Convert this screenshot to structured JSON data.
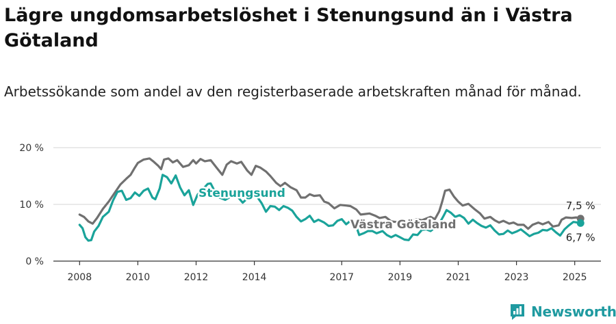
{
  "title": "Lägre ungdomsarbetslöshet i Stenungsund än i Västra Götaland",
  "subtitle": "Arbetssökande som andel av den registerbaserade arbetskraften månad för månad.",
  "brand": {
    "name": "Newsworthy",
    "color": "#1f9aa0",
    "icon": "newsworthy-logo-icon"
  },
  "chart_data": {
    "type": "line",
    "x_unit": "year",
    "xlim": [
      2007.1,
      2025.9
    ],
    "ylim": [
      0,
      20
    ],
    "y_ticks": [
      0,
      10,
      20
    ],
    "y_tick_labels": [
      "0 %",
      "10 %",
      "20 %"
    ],
    "x_ticks": [
      2008,
      2010,
      2012,
      2014,
      2017,
      2019,
      2021,
      2023,
      2025
    ],
    "x_tick_labels": [
      "2008",
      "2010",
      "2012",
      "2014",
      "2017",
      "2019",
      "2021",
      "2023",
      "2025"
    ],
    "grid": true,
    "series": [
      {
        "name": "Västra Götaland",
        "color": "#707070",
        "end_label": "7,5 %",
        "points": [
          [
            2008.0,
            8.2
          ],
          [
            2008.15,
            7.8
          ],
          [
            2008.3,
            7.0
          ],
          [
            2008.45,
            6.6
          ],
          [
            2008.6,
            7.6
          ],
          [
            2008.8,
            9.2
          ],
          [
            2009.0,
            10.5
          ],
          [
            2009.2,
            12.0
          ],
          [
            2009.4,
            13.5
          ],
          [
            2009.6,
            14.5
          ],
          [
            2009.75,
            15.2
          ],
          [
            2009.9,
            16.5
          ],
          [
            2010.0,
            17.3
          ],
          [
            2010.2,
            17.9
          ],
          [
            2010.4,
            18.1
          ],
          [
            2010.55,
            17.5
          ],
          [
            2010.7,
            16.8
          ],
          [
            2010.8,
            16.2
          ],
          [
            2010.9,
            17.9
          ],
          [
            2011.05,
            18.1
          ],
          [
            2011.2,
            17.4
          ],
          [
            2011.35,
            17.8
          ],
          [
            2011.55,
            16.6
          ],
          [
            2011.75,
            16.9
          ],
          [
            2011.9,
            17.8
          ],
          [
            2012.0,
            17.2
          ],
          [
            2012.15,
            18.0
          ],
          [
            2012.3,
            17.6
          ],
          [
            2012.5,
            17.8
          ],
          [
            2012.7,
            16.5
          ],
          [
            2012.9,
            15.2
          ],
          [
            2013.05,
            17.0
          ],
          [
            2013.2,
            17.6
          ],
          [
            2013.4,
            17.2
          ],
          [
            2013.55,
            17.5
          ],
          [
            2013.75,
            16.0
          ],
          [
            2013.9,
            15.2
          ],
          [
            2014.05,
            16.8
          ],
          [
            2014.2,
            16.5
          ],
          [
            2014.4,
            15.8
          ],
          [
            2014.55,
            15.0
          ],
          [
            2014.75,
            13.8
          ],
          [
            2014.9,
            13.2
          ],
          [
            2015.05,
            13.8
          ],
          [
            2015.25,
            13.0
          ],
          [
            2015.45,
            12.5
          ],
          [
            2015.6,
            11.2
          ],
          [
            2015.75,
            11.2
          ],
          [
            2015.9,
            11.8
          ],
          [
            2016.05,
            11.5
          ],
          [
            2016.25,
            11.6
          ],
          [
            2016.4,
            10.5
          ],
          [
            2016.55,
            10.2
          ],
          [
            2016.75,
            9.3
          ],
          [
            2016.95,
            9.9
          ],
          [
            2017.15,
            9.8
          ],
          [
            2017.3,
            9.7
          ],
          [
            2017.5,
            9.1
          ],
          [
            2017.65,
            8.2
          ],
          [
            2017.8,
            8.3
          ],
          [
            2017.95,
            8.4
          ],
          [
            2018.15,
            8.0
          ],
          [
            2018.3,
            7.6
          ],
          [
            2018.5,
            7.8
          ],
          [
            2018.7,
            7.0
          ],
          [
            2018.85,
            6.9
          ],
          [
            2019.0,
            7.0
          ],
          [
            2019.2,
            6.8
          ],
          [
            2019.4,
            6.9
          ],
          [
            2019.55,
            7.4
          ],
          [
            2019.75,
            7.2
          ],
          [
            2019.9,
            7.5
          ],
          [
            2020.05,
            7.8
          ],
          [
            2020.2,
            7.4
          ],
          [
            2020.35,
            8.8
          ],
          [
            2020.45,
            10.5
          ],
          [
            2020.55,
            12.4
          ],
          [
            2020.7,
            12.6
          ],
          [
            2020.85,
            11.4
          ],
          [
            2021.0,
            10.5
          ],
          [
            2021.15,
            9.8
          ],
          [
            2021.35,
            10.1
          ],
          [
            2021.55,
            9.2
          ],
          [
            2021.75,
            8.4
          ],
          [
            2021.9,
            7.5
          ],
          [
            2022.1,
            7.8
          ],
          [
            2022.25,
            7.2
          ],
          [
            2022.4,
            6.8
          ],
          [
            2022.55,
            7.1
          ],
          [
            2022.75,
            6.6
          ],
          [
            2022.9,
            6.8
          ],
          [
            2023.05,
            6.4
          ],
          [
            2023.25,
            6.4
          ],
          [
            2023.4,
            5.7
          ],
          [
            2023.55,
            6.4
          ],
          [
            2023.75,
            6.8
          ],
          [
            2023.9,
            6.5
          ],
          [
            2024.1,
            6.9
          ],
          [
            2024.25,
            6.1
          ],
          [
            2024.45,
            6.3
          ],
          [
            2024.55,
            7.3
          ],
          [
            2024.7,
            7.7
          ],
          [
            2024.9,
            7.6
          ],
          [
            2025.05,
            7.7
          ],
          [
            2025.2,
            7.5
          ]
        ]
      },
      {
        "name": "Stenungsund",
        "color": "#1aa39a",
        "end_label": "6,7 %",
        "points": [
          [
            2008.0,
            6.4
          ],
          [
            2008.1,
            5.8
          ],
          [
            2008.2,
            4.2
          ],
          [
            2008.3,
            3.6
          ],
          [
            2008.4,
            3.7
          ],
          [
            2008.5,
            5.2
          ],
          [
            2008.65,
            6.2
          ],
          [
            2008.8,
            7.8
          ],
          [
            2009.0,
            8.7
          ],
          [
            2009.15,
            10.7
          ],
          [
            2009.3,
            12.2
          ],
          [
            2009.45,
            12.4
          ],
          [
            2009.6,
            10.8
          ],
          [
            2009.75,
            11.1
          ],
          [
            2009.9,
            12.1
          ],
          [
            2010.05,
            11.5
          ],
          [
            2010.2,
            12.4
          ],
          [
            2010.35,
            12.8
          ],
          [
            2010.5,
            11.2
          ],
          [
            2010.6,
            10.9
          ],
          [
            2010.75,
            12.8
          ],
          [
            2010.85,
            15.2
          ],
          [
            2011.0,
            14.8
          ],
          [
            2011.15,
            13.7
          ],
          [
            2011.3,
            15.1
          ],
          [
            2011.45,
            13.0
          ],
          [
            2011.6,
            11.6
          ],
          [
            2011.75,
            12.5
          ],
          [
            2011.9,
            9.9
          ],
          [
            2012.05,
            11.7
          ],
          [
            2012.2,
            12.5
          ],
          [
            2012.4,
            13.6
          ],
          [
            2012.5,
            13.7
          ],
          [
            2012.65,
            12.2
          ],
          [
            2012.8,
            11.2
          ],
          [
            2013.0,
            10.8
          ],
          [
            2013.2,
            11.4
          ],
          [
            2013.4,
            11.5
          ],
          [
            2013.6,
            10.3
          ],
          [
            2013.75,
            11.0
          ],
          [
            2013.9,
            11.5
          ],
          [
            2014.1,
            11.3
          ],
          [
            2014.25,
            10.2
          ],
          [
            2014.4,
            8.7
          ],
          [
            2014.55,
            9.7
          ],
          [
            2014.7,
            9.6
          ],
          [
            2014.85,
            9.0
          ],
          [
            2015.0,
            9.7
          ],
          [
            2015.15,
            9.4
          ],
          [
            2015.3,
            8.9
          ],
          [
            2015.45,
            7.8
          ],
          [
            2015.6,
            7.0
          ],
          [
            2015.75,
            7.4
          ],
          [
            2015.9,
            8.0
          ],
          [
            2016.05,
            6.9
          ],
          [
            2016.2,
            7.3
          ],
          [
            2016.4,
            6.8
          ],
          [
            2016.55,
            6.2
          ],
          [
            2016.7,
            6.3
          ],
          [
            2016.85,
            7.1
          ],
          [
            2017.0,
            7.4
          ],
          [
            2017.15,
            6.5
          ],
          [
            2017.3,
            7.1
          ],
          [
            2017.5,
            6.1
          ],
          [
            2017.6,
            4.6
          ],
          [
            2017.75,
            4.9
          ],
          [
            2017.9,
            5.3
          ],
          [
            2018.05,
            5.3
          ],
          [
            2018.2,
            4.9
          ],
          [
            2018.4,
            5.3
          ],
          [
            2018.55,
            4.6
          ],
          [
            2018.7,
            4.2
          ],
          [
            2018.85,
            4.6
          ],
          [
            2019.0,
            4.2
          ],
          [
            2019.15,
            3.8
          ],
          [
            2019.3,
            3.7
          ],
          [
            2019.45,
            4.7
          ],
          [
            2019.6,
            4.6
          ],
          [
            2019.75,
            5.5
          ],
          [
            2019.9,
            5.6
          ],
          [
            2020.05,
            5.3
          ],
          [
            2020.2,
            5.9
          ],
          [
            2020.35,
            6.6
          ],
          [
            2020.5,
            8.0
          ],
          [
            2020.6,
            9.0
          ],
          [
            2020.75,
            8.5
          ],
          [
            2020.9,
            7.8
          ],
          [
            2021.05,
            8.1
          ],
          [
            2021.2,
            7.6
          ],
          [
            2021.35,
            6.6
          ],
          [
            2021.5,
            7.3
          ],
          [
            2021.65,
            6.7
          ],
          [
            2021.8,
            6.2
          ],
          [
            2021.95,
            5.9
          ],
          [
            2022.1,
            6.3
          ],
          [
            2022.25,
            5.4
          ],
          [
            2022.4,
            4.7
          ],
          [
            2022.55,
            4.8
          ],
          [
            2022.7,
            5.4
          ],
          [
            2022.85,
            4.9
          ],
          [
            2023.0,
            5.2
          ],
          [
            2023.15,
            5.6
          ],
          [
            2023.3,
            5.0
          ],
          [
            2023.45,
            4.4
          ],
          [
            2023.6,
            4.8
          ],
          [
            2023.75,
            5.0
          ],
          [
            2023.9,
            5.5
          ],
          [
            2024.05,
            5.4
          ],
          [
            2024.2,
            5.8
          ],
          [
            2024.35,
            5.1
          ],
          [
            2024.5,
            4.5
          ],
          [
            2024.65,
            5.6
          ],
          [
            2024.8,
            6.3
          ],
          [
            2024.95,
            6.9
          ],
          [
            2025.1,
            6.8
          ],
          [
            2025.2,
            6.7
          ]
        ]
      }
    ]
  }
}
